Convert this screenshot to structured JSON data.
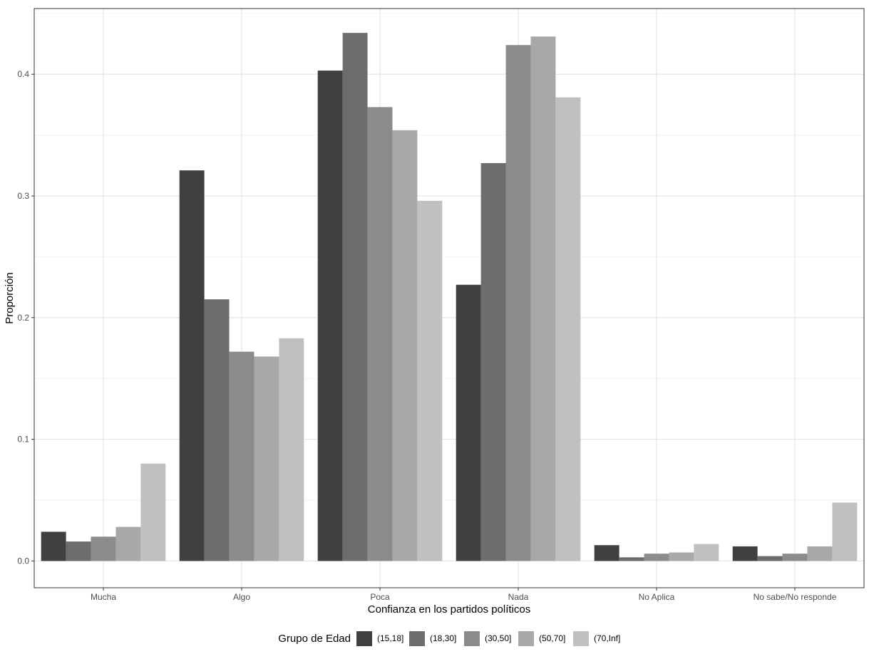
{
  "chart_data": {
    "type": "bar",
    "title": "",
    "xlabel": "Confianza en los partidos políticos",
    "ylabel": "Proporción",
    "ylim": [
      -0.022,
      0.454
    ],
    "yticks": [
      0.0,
      0.1,
      0.2,
      0.3,
      0.4
    ],
    "ytick_labels": [
      "0.0",
      "0.1",
      "0.2",
      "0.3",
      "0.4"
    ],
    "grid": true,
    "legend_position": "bottom",
    "legend_title": "Grupo de Edad",
    "categories": [
      "Mucha",
      "Algo",
      "Poca",
      "Nada",
      "No Aplica",
      "No sabe/No responde"
    ],
    "series": [
      {
        "name": "(15,18]",
        "color": "#404042",
        "values": [
          0.024,
          0.321,
          0.403,
          0.227,
          0.013,
          0.012
        ]
      },
      {
        "name": "(18,30]",
        "color": "#6d6d70",
        "values": [
          0.016,
          0.215,
          0.434,
          0.327,
          0.003,
          0.004
        ]
      },
      {
        "name": "(30,50]",
        "color": "#8c8c8f",
        "values": [
          0.02,
          0.172,
          0.373,
          0.424,
          0.006,
          0.006
        ]
      },
      {
        "name": "(50,70]",
        "color": "#a8a8aa",
        "values": [
          0.028,
          0.168,
          0.354,
          0.431,
          0.007,
          0.012
        ]
      },
      {
        "name": "(70,Inf]",
        "color": "#c0c0c2",
        "values": [
          0.08,
          0.183,
          0.296,
          0.381,
          0.014,
          0.048
        ]
      }
    ]
  }
}
